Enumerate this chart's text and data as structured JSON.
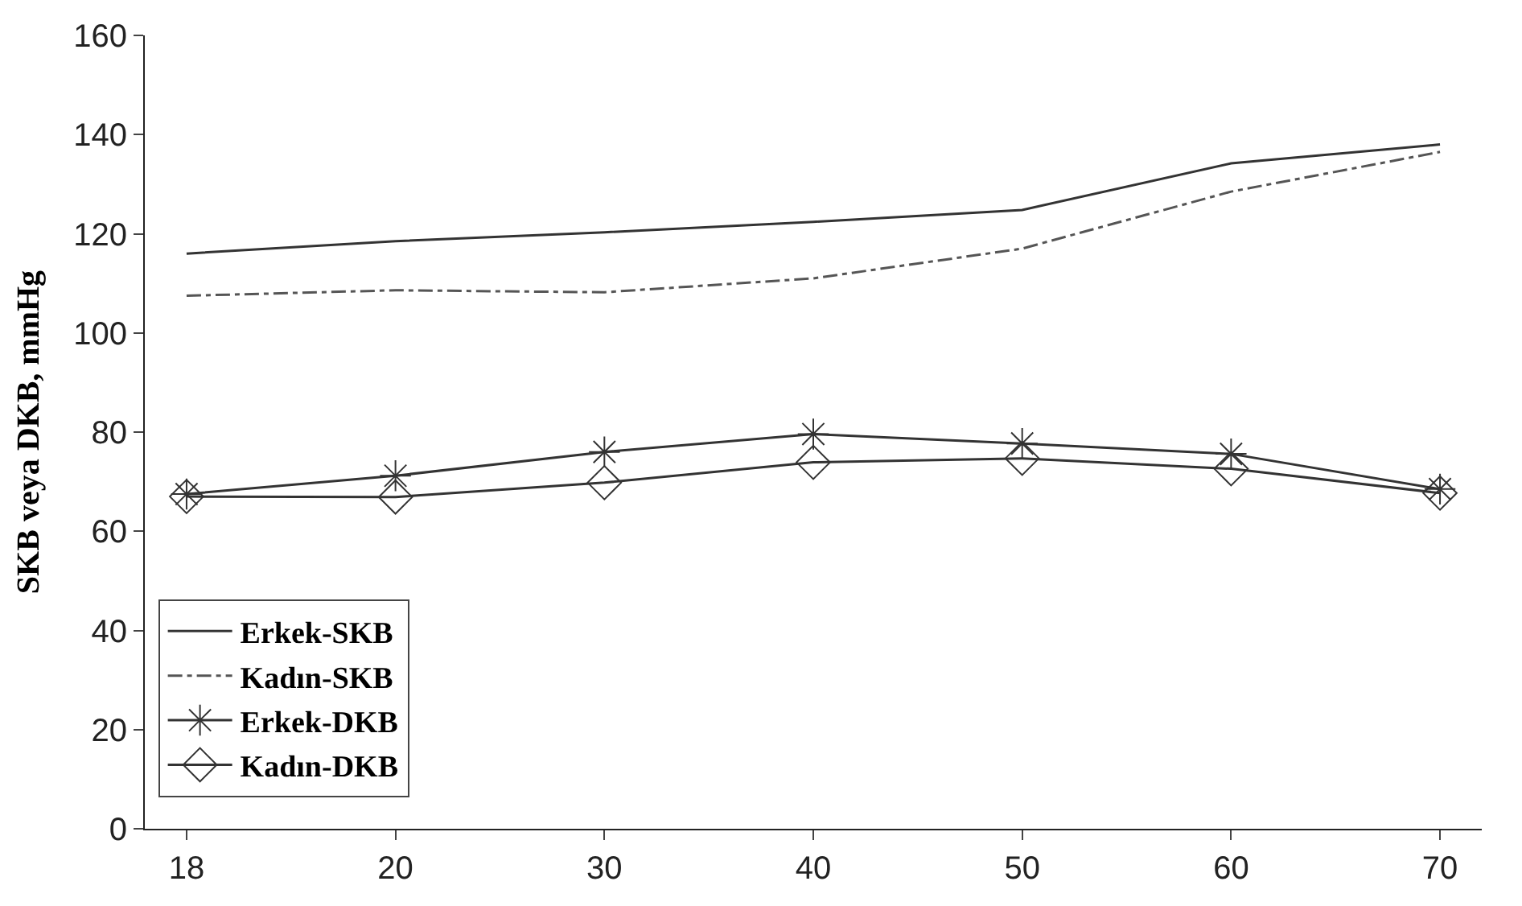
{
  "chart_data": {
    "type": "line",
    "ylabel": "SKB veya DKB, mmHg",
    "categories": [
      "18",
      "20",
      "30",
      "40",
      "50",
      "60",
      "70"
    ],
    "series": [
      {
        "name": "Erkek-SKB",
        "color": "#333333",
        "line_style": "solid",
        "marker": "none",
        "values": [
          116,
          118.5,
          120.3,
          122.4,
          124.8,
          134.2,
          138
        ]
      },
      {
        "name": "Kadın-SKB",
        "color": "#555555",
        "line_style": "dashdot",
        "marker": "none",
        "values": [
          107.5,
          108.6,
          108.2,
          111,
          117,
          128.5,
          136.5
        ]
      },
      {
        "name": "Erkek-DKB",
        "color": "#333333",
        "line_style": "solid",
        "marker": "cross",
        "values": [
          67.5,
          71.2,
          76,
          79.6,
          77.7,
          75.6,
          68.5
        ]
      },
      {
        "name": "Kadın-DKB",
        "color": "#333333",
        "line_style": "solid",
        "marker": "diamond",
        "values": [
          67,
          66.9,
          69.8,
          73.9,
          74.7,
          72.6,
          67.7
        ]
      }
    ],
    "ylim": [
      0,
      160
    ],
    "yticks": [
      0,
      20,
      40,
      60,
      80,
      100,
      120,
      140,
      160
    ],
    "legend": "bottom left"
  }
}
